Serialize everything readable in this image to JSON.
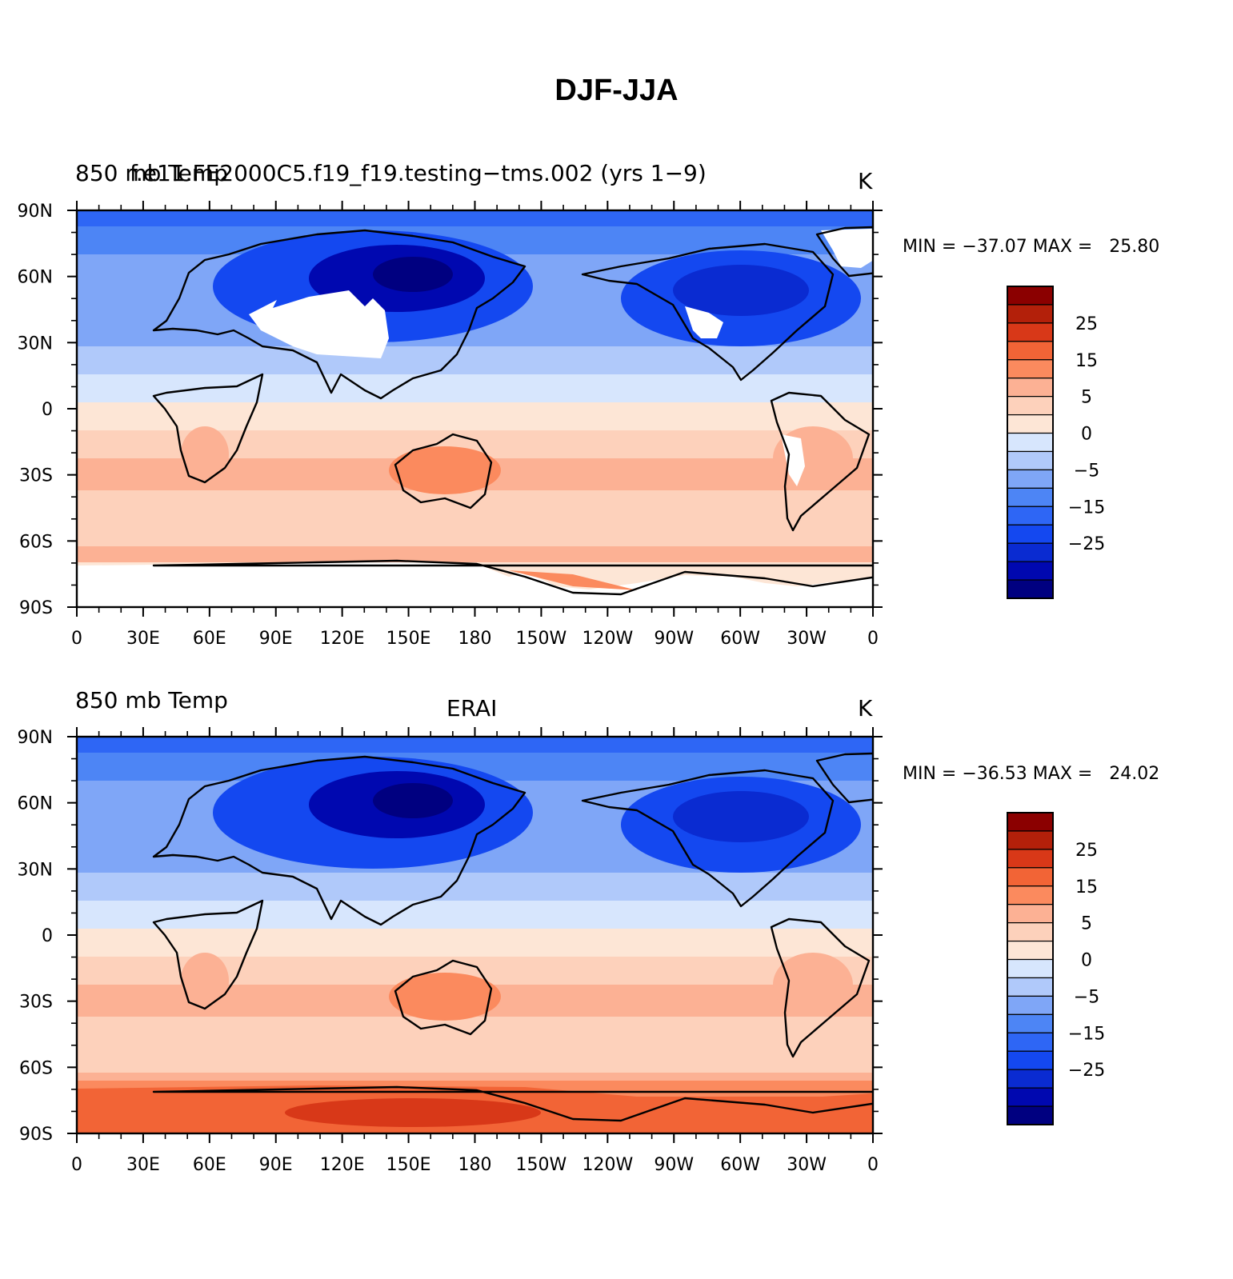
{
  "figure": {
    "title": "DJF-JJA"
  },
  "palette": {
    "bands": [
      "#000080",
      "#0008b0",
      "#0a2bd1",
      "#1448f0",
      "#2e66f5",
      "#4d85f5",
      "#7fa6f7",
      "#b0c9fa",
      "#d7e6fd",
      "#fde6d6",
      "#fdd1bb",
      "#fcb194",
      "#fb8a5e",
      "#f26436",
      "#d83818",
      "#b3200a",
      "#8b0000"
    ],
    "labels": [
      "25",
      "15",
      "5",
      "0",
      "−5",
      "−15",
      "−25"
    ],
    "missing": "#ffffff",
    "land_outline": "#000000"
  },
  "axes": {
    "lon_ticks": [
      "0",
      "30E",
      "60E",
      "90E",
      "120E",
      "150E",
      "180",
      "150W",
      "120W",
      "90W",
      "60W",
      "30W",
      "0"
    ],
    "lat_ticks": [
      "90N",
      "60N",
      "30N",
      "0",
      "30S",
      "60S",
      "90S"
    ]
  },
  "panels": [
    {
      "id": "model",
      "left_label": "850 mb Temp",
      "center_label": "f.e11.FE2000C5.f19_f19.testing−tms.002 (yrs 1−9)",
      "units": "K",
      "stats": {
        "min": "−37.07",
        "max": "25.80"
      },
      "stats_text": {
        "min_label": "MIN =",
        "max_label": "MAX ="
      }
    },
    {
      "id": "obs",
      "left_label": "850 mb Temp",
      "center_label": "ERAI",
      "units": "K",
      "stats": {
        "min": "−36.53",
        "max": "24.02"
      },
      "stats_text": {
        "min_label": "MIN =",
        "max_label": "MAX ="
      }
    }
  ]
}
